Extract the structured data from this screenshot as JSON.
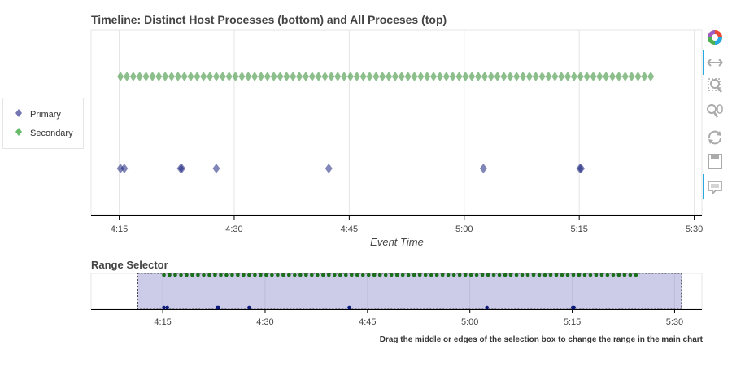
{
  "main_title": "Timeline: Distinct Host Processes (bottom) and All Proceses (top)",
  "range_title": "Range Selector",
  "caption": "Drag the middle or edges of the selection box to change the range in the main chart",
  "legend": [
    {
      "label": "Primary",
      "color": "#5b5ea6"
    },
    {
      "label": "Secondary",
      "color": "#4caf50"
    }
  ],
  "toolbar": [
    {
      "name": "bokeh-logo-icon"
    },
    {
      "name": "pan-icon"
    },
    {
      "name": "box-zoom-icon"
    },
    {
      "name": "wheel-zoom-icon"
    },
    {
      "name": "reset-icon"
    },
    {
      "name": "save-icon"
    },
    {
      "name": "hover-icon"
    }
  ],
  "chart_data": [
    {
      "type": "scatter",
      "title": "Timeline: Distinct Host Processes (bottom) and All Proceses (top)",
      "xlabel": "Event Time",
      "ylabel": "",
      "x_ticks": [
        "4:15",
        "4:30",
        "4:45",
        "5:00",
        "5:15",
        "5:30"
      ],
      "xlim": [
        "4:11:20",
        "5:31"
      ],
      "marker": "diamond",
      "grid": "vertical",
      "legend_position": "left",
      "series": [
        {
          "name": "Secondary",
          "row": "top",
          "color": "#2e8b2e",
          "x": [
            "4:15:10",
            "4:16:00",
            "4:16:50",
            "4:17:40",
            "4:18:30",
            "4:19:20",
            "4:20:10",
            "4:21:00",
            "4:21:50",
            "4:22:40",
            "4:23:30",
            "4:24:20",
            "4:25:10",
            "4:26:00",
            "4:26:50",
            "4:27:40",
            "4:28:30",
            "4:29:20",
            "4:30:10",
            "4:31:00",
            "4:31:50",
            "4:32:40",
            "4:33:30",
            "4:34:20",
            "4:35:10",
            "4:36:00",
            "4:36:50",
            "4:37:40",
            "4:38:30",
            "4:39:20",
            "4:40:10",
            "4:41:00",
            "4:41:50",
            "4:42:40",
            "4:43:30",
            "4:44:20",
            "4:45:10",
            "4:46:00",
            "4:46:50",
            "4:47:40",
            "4:48:30",
            "4:49:20",
            "4:50:10",
            "4:51:00",
            "4:51:50",
            "4:52:40",
            "4:53:30",
            "4:54:20",
            "4:55:10",
            "4:56:00",
            "4:56:50",
            "4:57:40",
            "4:58:30",
            "4:59:20",
            "5:00:10",
            "5:01:00",
            "5:01:50",
            "5:02:40",
            "5:03:30",
            "5:04:20",
            "5:05:10",
            "5:06:00",
            "5:06:50",
            "5:07:40",
            "5:08:30",
            "5:09:20",
            "5:10:10",
            "5:11:00",
            "5:11:50",
            "5:12:40",
            "5:13:30",
            "5:14:20",
            "5:15:10",
            "5:16:00",
            "5:16:50",
            "5:17:40",
            "5:18:30",
            "5:19:20",
            "5:20:10",
            "5:21:00",
            "5:21:50",
            "5:22:40",
            "5:23:30",
            "5:24:20"
          ]
        },
        {
          "name": "Primary",
          "row": "bottom",
          "color": "#1a237e",
          "x": [
            "4:15:10",
            "4:15:40",
            "4:23:00",
            "4:23:10",
            "4:27:40",
            "4:42:20",
            "5:02:30",
            "5:15:05",
            "5:15:15"
          ]
        }
      ]
    },
    {
      "type": "scatter",
      "title": "Range Selector",
      "x_ticks": [
        "4:15",
        "4:30",
        "4:45",
        "5:00",
        "5:15",
        "5:30"
      ],
      "selection_range": [
        "4:11:20",
        "5:31"
      ],
      "series": [
        {
          "name": "Secondary",
          "row": "top",
          "color": "#1b6e1b"
        },
        {
          "name": "Primary",
          "row": "bottom",
          "color": "#0d1b7a"
        }
      ]
    }
  ]
}
